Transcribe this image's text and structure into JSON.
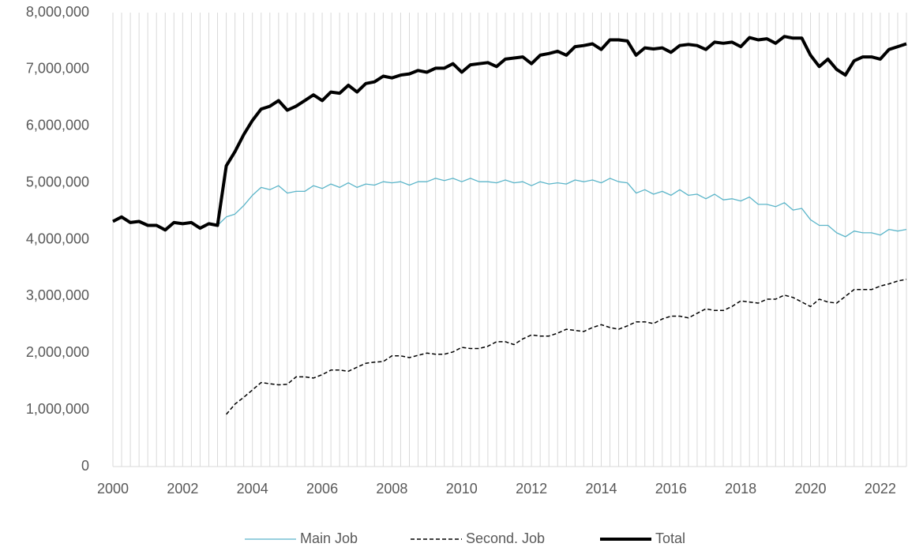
{
  "chart_data": {
    "type": "line",
    "x": [
      2000,
      2000.25,
      2000.5,
      2000.75,
      2001,
      2001.25,
      2001.5,
      2001.75,
      2002,
      2002.25,
      2002.5,
      2002.75,
      2003,
      2003.25,
      2003.5,
      2003.75,
      2004,
      2004.25,
      2004.5,
      2004.75,
      2005,
      2005.25,
      2005.5,
      2005.75,
      2006,
      2006.25,
      2006.5,
      2006.75,
      2007,
      2007.25,
      2007.5,
      2007.75,
      2008,
      2008.25,
      2008.5,
      2008.75,
      2009,
      2009.25,
      2009.5,
      2009.75,
      2010,
      2010.25,
      2010.5,
      2010.75,
      2011,
      2011.25,
      2011.5,
      2011.75,
      2012,
      2012.25,
      2012.5,
      2012.75,
      2013,
      2013.25,
      2013.5,
      2013.75,
      2014,
      2014.25,
      2014.5,
      2014.75,
      2015,
      2015.25,
      2015.5,
      2015.75,
      2016,
      2016.25,
      2016.5,
      2016.75,
      2017,
      2017.25,
      2017.5,
      2017.75,
      2018,
      2018.25,
      2018.5,
      2018.75,
      2019,
      2019.25,
      2019.5,
      2019.75,
      2020,
      2020.25,
      2020.5,
      2020.75,
      2021,
      2021.25,
      2021.5,
      2021.75,
      2022,
      2022.25,
      2022.5,
      2022.75
    ],
    "series": [
      {
        "name": "Main Job",
        "color": "#5bb5c9",
        "values": [
          4320000,
          4400000,
          4300000,
          4320000,
          4250000,
          4250000,
          4170000,
          4300000,
          4280000,
          4300000,
          4200000,
          4280000,
          4250000,
          4400000,
          4450000,
          4600000,
          4780000,
          4920000,
          4880000,
          4950000,
          4820000,
          4850000,
          4850000,
          4950000,
          4900000,
          4980000,
          4920000,
          5000000,
          4920000,
          4980000,
          4960000,
          5020000,
          5000000,
          5020000,
          4960000,
          5020000,
          5020000,
          5080000,
          5040000,
          5080000,
          5020000,
          5080000,
          5020000,
          5020000,
          5000000,
          5050000,
          5000000,
          5020000,
          4950000,
          5020000,
          4980000,
          5000000,
          4980000,
          5050000,
          5020000,
          5050000,
          5000000,
          5080000,
          5020000,
          5000000,
          4820000,
          4880000,
          4800000,
          4850000,
          4780000,
          4880000,
          4780000,
          4800000,
          4720000,
          4800000,
          4700000,
          4720000,
          4680000,
          4750000,
          4620000,
          4620000,
          4580000,
          4650000,
          4520000,
          4550000,
          4350000,
          4250000,
          4250000,
          4120000,
          4050000,
          4150000,
          4120000,
          4120000,
          4080000,
          4180000,
          4150000,
          4180000
        ]
      },
      {
        "name": "Second. Job",
        "color": "#000000",
        "dash": true,
        "values": [
          null,
          null,
          null,
          null,
          null,
          null,
          null,
          null,
          null,
          null,
          null,
          null,
          null,
          920000,
          1100000,
          1220000,
          1350000,
          1480000,
          1460000,
          1440000,
          1450000,
          1580000,
          1580000,
          1560000,
          1620000,
          1700000,
          1700000,
          1680000,
          1750000,
          1820000,
          1840000,
          1850000,
          1950000,
          1950000,
          1920000,
          1960000,
          2000000,
          1980000,
          1980000,
          2020000,
          2100000,
          2080000,
          2080000,
          2120000,
          2200000,
          2200000,
          2150000,
          2250000,
          2320000,
          2300000,
          2300000,
          2350000,
          2420000,
          2400000,
          2380000,
          2450000,
          2500000,
          2450000,
          2420000,
          2480000,
          2550000,
          2550000,
          2520000,
          2600000,
          2650000,
          2650000,
          2620000,
          2700000,
          2780000,
          2750000,
          2750000,
          2820000,
          2920000,
          2900000,
          2880000,
          2950000,
          2950000,
          3020000,
          2980000,
          2900000,
          2820000,
          2950000,
          2900000,
          2880000,
          3000000,
          3120000,
          3120000,
          3120000,
          3180000,
          3220000,
          3270000,
          3300000
        ]
      },
      {
        "name": "Total",
        "color": "#000000",
        "width": 4,
        "values": [
          4320000,
          4400000,
          4300000,
          4320000,
          4250000,
          4250000,
          4170000,
          4300000,
          4280000,
          4300000,
          4200000,
          4280000,
          4250000,
          5300000,
          5550000,
          5850000,
          6100000,
          6300000,
          6350000,
          6450000,
          6280000,
          6350000,
          6450000,
          6550000,
          6450000,
          6600000,
          6580000,
          6720000,
          6600000,
          6750000,
          6780000,
          6880000,
          6850000,
          6900000,
          6920000,
          6980000,
          6950000,
          7020000,
          7020000,
          7100000,
          6950000,
          7080000,
          7100000,
          7120000,
          7050000,
          7180000,
          7200000,
          7220000,
          7100000,
          7250000,
          7280000,
          7320000,
          7250000,
          7400000,
          7420000,
          7450000,
          7350000,
          7520000,
          7520000,
          7500000,
          7250000,
          7380000,
          7360000,
          7380000,
          7300000,
          7420000,
          7440000,
          7420000,
          7350000,
          7480000,
          7460000,
          7480000,
          7400000,
          7560000,
          7520000,
          7540000,
          7460000,
          7580000,
          7550000,
          7550000,
          7250000,
          7050000,
          7180000,
          7000000,
          6900000,
          7150000,
          7220000,
          7220000,
          7180000,
          7350000,
          7400000,
          7450000
        ]
      }
    ],
    "xlim": [
      2000,
      2022.75
    ],
    "xticks": [
      2000,
      2002,
      2004,
      2006,
      2008,
      2010,
      2012,
      2014,
      2016,
      2018,
      2020,
      2022
    ],
    "ylim": [
      0,
      8000000
    ],
    "yticks": [
      0,
      {
        "value": 1000000,
        "label": "1,000,000"
      },
      {
        "value": 2000000,
        "label": "2,000,000"
      },
      {
        "value": 3000000,
        "label": "3,000,000"
      },
      {
        "value": 4000000,
        "label": "4,000,000"
      },
      {
        "value": 5000000,
        "label": "5,000,000"
      },
      {
        "value": 6000000,
        "label": "6,000,000"
      },
      {
        "value": 7000000,
        "label": "7,000,000"
      },
      {
        "value": 8000000,
        "label": "8,000,000"
      }
    ],
    "grid": "x",
    "legend": "bottom"
  }
}
